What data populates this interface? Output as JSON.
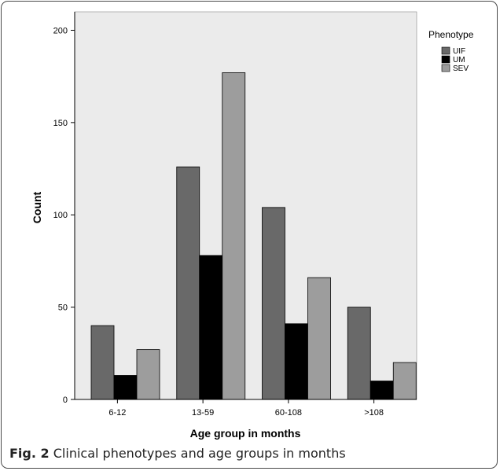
{
  "caption": {
    "label": "Fig. 2",
    "text": "Clinical phenotypes and age groups in months"
  },
  "chart_data": {
    "type": "bar",
    "xlabel": "Age group in months",
    "ylabel": "Count",
    "legend_title": "Phenotype",
    "legend_position": "top-right",
    "grid": false,
    "ylim": [
      0,
      210
    ],
    "yticks": [
      0,
      50,
      100,
      150,
      200
    ],
    "categories": [
      "6-12",
      "13-59",
      "60-108",
      ">108"
    ],
    "series": [
      {
        "name": "UIF",
        "values": [
          40,
          126,
          104,
          50
        ],
        "color": "#696969"
      },
      {
        "name": "UM",
        "values": [
          13,
          78,
          41,
          10
        ],
        "color": "#000000"
      },
      {
        "name": "SEV",
        "values": [
          27,
          177,
          66,
          20
        ],
        "color": "#9d9d9d"
      }
    ],
    "plot_background": "#ebebeb"
  }
}
